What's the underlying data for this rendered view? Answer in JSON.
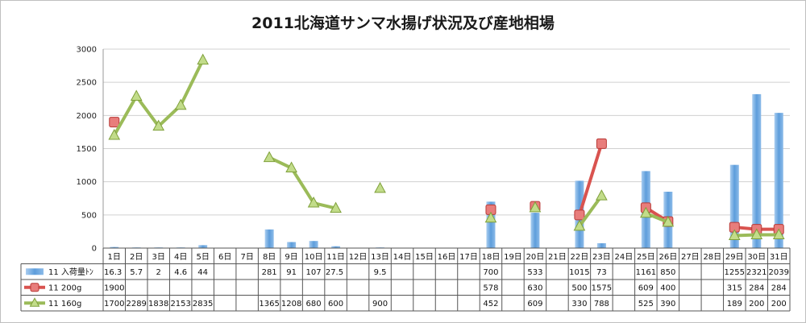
{
  "chart_data": {
    "type": "bar",
    "title": "2011北海道サンマ水揚げ状況及び産地相場",
    "ylim": [
      0,
      3000
    ],
    "yticks": [
      0,
      500,
      1000,
      1500,
      2000,
      2500,
      3000
    ],
    "grid": true,
    "legend_placement": "table-left",
    "categories": [
      "1日",
      "2日",
      "3日",
      "4日",
      "5日",
      "6日",
      "7日",
      "8日",
      "9日",
      "10日",
      "11日",
      "12日",
      "13日",
      "14日",
      "15日",
      "16日",
      "17日",
      "18日",
      "19日",
      "20日",
      "21日",
      "22日",
      "23日",
      "24日",
      "25日",
      "26日",
      "27日",
      "28日",
      "29日",
      "30日",
      "31日"
    ],
    "series": [
      {
        "name": "11 入荷量ﾄﾝ",
        "kind": "bar",
        "color": "#6fa8dc",
        "values": [
          16.3,
          5.7,
          2,
          4.6,
          44,
          null,
          null,
          281,
          91,
          107,
          27.5,
          null,
          9.5,
          null,
          null,
          null,
          null,
          700,
          null,
          533,
          null,
          1015,
          73,
          null,
          1161,
          850,
          null,
          null,
          1255,
          2321,
          2039
        ],
        "labels": [
          "16.3",
          "5.7",
          "2",
          "4.6",
          "44",
          "",
          "",
          "281",
          "91",
          "107",
          "27.5",
          "",
          "9.5",
          "",
          "",
          "",
          "",
          "700",
          "",
          "533",
          "",
          "1015",
          "73",
          "",
          "1161",
          "850",
          "",
          "",
          "1255",
          "2321",
          "2039"
        ]
      },
      {
        "name": "11 200g",
        "kind": "line",
        "color": "#d9534f",
        "values": [
          1900,
          null,
          null,
          null,
          null,
          null,
          null,
          null,
          null,
          null,
          null,
          null,
          null,
          null,
          null,
          null,
          null,
          578,
          null,
          630,
          null,
          500,
          1575,
          null,
          609,
          400,
          null,
          null,
          315,
          284,
          284
        ],
        "labels": [
          "1900",
          "",
          "",
          "",
          "",
          "",
          "",
          "",
          "",
          "",
          "",
          "",
          "",
          "",
          "",
          "",
          "",
          "578",
          "",
          "630",
          "",
          "500",
          "1575",
          "",
          "609",
          "400",
          "",
          "",
          "315",
          "284",
          "284"
        ]
      },
      {
        "name": "11 160g",
        "kind": "line",
        "color": "#9bbb59",
        "values": [
          1700,
          2289,
          1838,
          2153,
          2835,
          null,
          null,
          1365,
          1208,
          680,
          600,
          null,
          900,
          null,
          null,
          null,
          null,
          452,
          null,
          609,
          null,
          330,
          788,
          null,
          525,
          390,
          null,
          null,
          189,
          200,
          200
        ],
        "labels": [
          "1700",
          "2289",
          "1838",
          "2153",
          "2835",
          "",
          "",
          "1365",
          "1208",
          "680",
          "600",
          "",
          "900",
          "",
          "",
          "",
          "",
          "452",
          "",
          "609",
          "",
          "330",
          "788",
          "",
          "525",
          "390",
          "",
          "",
          "189",
          "200",
          "200"
        ]
      }
    ]
  }
}
